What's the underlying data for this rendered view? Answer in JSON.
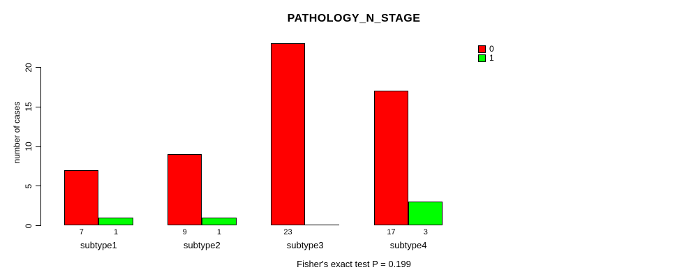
{
  "title": "PATHOLOGY_N_STAGE",
  "ylabel": "number of cases",
  "footnote": "Fisher's exact test P = 0.199",
  "legend": {
    "items": [
      {
        "label": "0",
        "color": "#FF0000"
      },
      {
        "label": "1",
        "color": "#00FF00"
      }
    ]
  },
  "colors": {
    "bar_border": "#000000",
    "axis": "#000000",
    "text": "#000000",
    "background": "#FFFFFF"
  },
  "chart_data": {
    "type": "bar",
    "title": "PATHOLOGY_N_STAGE",
    "xlabel": "",
    "ylabel": "number of cases",
    "categories": [
      "subtype1",
      "subtype2",
      "subtype3",
      "subtype4"
    ],
    "series": [
      {
        "name": "0",
        "color": "#FF0000",
        "values": [
          7,
          9,
          23,
          17
        ]
      },
      {
        "name": "1",
        "color": "#00FF00",
        "values": [
          1,
          1,
          0,
          3
        ]
      }
    ],
    "yticks": [
      0,
      5,
      10,
      15,
      20
    ],
    "ylim": [
      0,
      23
    ],
    "grid": false,
    "legend_position": "top-right",
    "bar_value_labels": true,
    "annotation": "Fisher's exact test P = 0.199"
  }
}
